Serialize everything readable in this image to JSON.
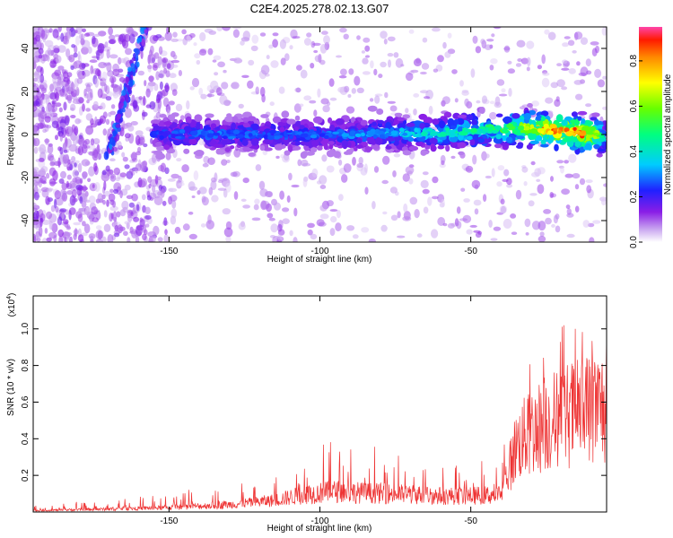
{
  "title": "C2E4.2025.278.02.13.G07",
  "chart_data": [
    {
      "type": "heatmap",
      "xlabel": "Height of straight line (km)",
      "ylabel": "Frequency (Hz)",
      "xlim": [
        -195,
        -5
      ],
      "ylim": [
        -50,
        50
      ],
      "xticks": [
        -150,
        -100,
        -50
      ],
      "yticks": [
        -40,
        -20,
        0,
        20,
        40
      ],
      "colorbar": {
        "label": "Normalized spectral amplitude",
        "range": [
          0,
          0.95
        ],
        "ticks": [
          0.0,
          0.2,
          0.4,
          0.6,
          0.8
        ]
      },
      "ridge": {
        "x": [
          -155,
          -140,
          -120,
          -100,
          -80,
          -60,
          -40,
          -30,
          -20,
          -10,
          -5
        ],
        "frequency": [
          0,
          0,
          0,
          0,
          0.5,
          1,
          2.5,
          3,
          2,
          0,
          -1
        ],
        "peak_amplitude": [
          0.25,
          0.3,
          0.3,
          0.3,
          0.35,
          0.45,
          0.55,
          0.75,
          0.95,
          0.9,
          0.3
        ]
      },
      "oblique_feature": {
        "x": [
          -170,
          -158
        ],
        "frequency": [
          -10,
          50
        ]
      }
    },
    {
      "type": "line",
      "xlabel": "Height of straight line (km)",
      "ylabel": "SNR (10 * v/v)",
      "multiplier": "(x10",
      "multiplier_exp": "4",
      "xlim": [
        -195,
        -5
      ],
      "ylim": [
        0,
        1.18
      ],
      "xticks": [
        -150,
        -100,
        -50
      ],
      "yticks": [
        0.2,
        0.4,
        0.6,
        0.8,
        1.0
      ],
      "color": "#ee3333",
      "envelope": {
        "x": [
          -195,
          -170,
          -150,
          -130,
          -115,
          -105,
          -95,
          -85,
          -70,
          -60,
          -50,
          -40,
          -35,
          -30,
          -20,
          -10,
          -5
        ],
        "level": [
          0.01,
          0.02,
          0.03,
          0.05,
          0.08,
          0.12,
          0.14,
          0.13,
          0.12,
          0.11,
          0.11,
          0.12,
          0.45,
          0.55,
          0.65,
          0.7,
          0.72
        ],
        "spike": [
          0.03,
          0.05,
          0.07,
          0.1,
          0.15,
          0.25,
          0.35,
          0.25,
          0.2,
          0.18,
          0.15,
          0.15,
          0.35,
          0.4,
          0.45,
          0.45,
          0.4
        ]
      }
    }
  ]
}
